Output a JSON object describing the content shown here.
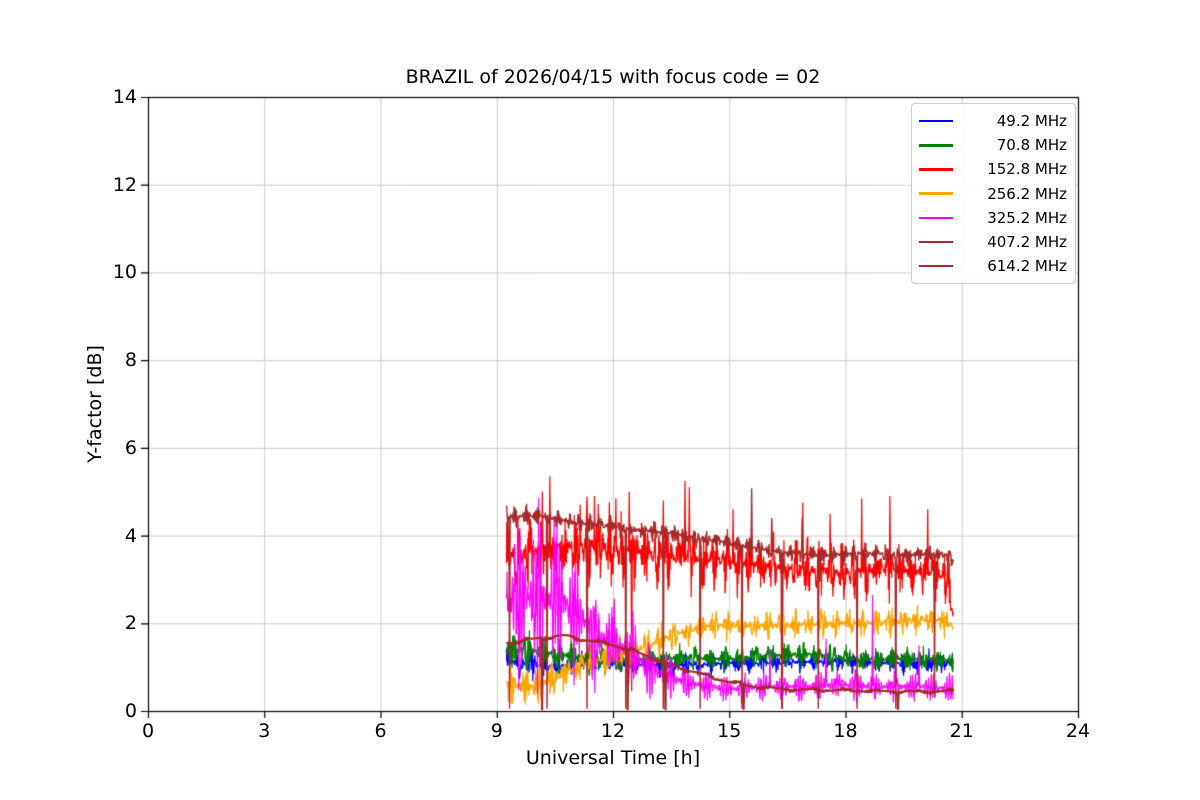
{
  "chart_data": {
    "type": "line",
    "title": "BRAZIL of 2026/04/15 with focus code = 02",
    "xlabel": "Universal Time [h]",
    "ylabel": "Y-factor [dB]",
    "xlim": [
      0,
      24
    ],
    "ylim": [
      0,
      14
    ],
    "xticks": [
      0,
      3,
      6,
      9,
      12,
      15,
      18,
      21,
      24
    ],
    "yticks": [
      0,
      2,
      4,
      6,
      8,
      10,
      12,
      14
    ],
    "grid": true,
    "grid_color": "#c6c6c6",
    "legend_position": "upper right",
    "time_coverage_h": [
      9.25,
      20.78
    ],
    "sample_step_h": 0.008,
    "series_note": "envelope points are [time_h, center_dB, noise_half_amplitude_dB]; spikes/dips are [time_h, value_dB]",
    "series": [
      {
        "name": "49.2 MHz",
        "color": "#0000ff",
        "seed": 101,
        "linewidth": 1.2,
        "mod_freq": 19,
        "osc_frac": 0.25,
        "osc_freq": 52,
        "envelope": [
          [
            9.25,
            1.15,
            0.28
          ],
          [
            10.0,
            1.05,
            0.3
          ],
          [
            10.6,
            1.0,
            0.28
          ],
          [
            11.2,
            1.15,
            0.25
          ],
          [
            12.0,
            1.1,
            0.22
          ],
          [
            13.0,
            1.05,
            0.22
          ],
          [
            14.0,
            1.05,
            0.22
          ],
          [
            15.0,
            1.1,
            0.22
          ],
          [
            16.0,
            1.1,
            0.22
          ],
          [
            17.0,
            1.12,
            0.22
          ],
          [
            18.0,
            1.15,
            0.22
          ],
          [
            19.0,
            1.1,
            0.22
          ],
          [
            20.0,
            1.1,
            0.24
          ],
          [
            20.78,
            1.1,
            0.25
          ]
        ],
        "spikes": [],
        "dips": []
      },
      {
        "name": "70.8 MHz",
        "color": "#008000",
        "seed": 202,
        "linewidth": 1.2,
        "mod_freq": 16,
        "osc_frac": 0.25,
        "osc_freq": 47,
        "envelope": [
          [
            9.25,
            1.45,
            0.45
          ],
          [
            10.2,
            1.35,
            0.4
          ],
          [
            11.0,
            1.25,
            0.35
          ],
          [
            12.0,
            1.15,
            0.3
          ],
          [
            13.0,
            1.2,
            0.28
          ],
          [
            14.0,
            1.2,
            0.28
          ],
          [
            15.0,
            1.18,
            0.26
          ],
          [
            16.0,
            1.25,
            0.28
          ],
          [
            17.0,
            1.3,
            0.28
          ],
          [
            18.0,
            1.2,
            0.26
          ],
          [
            19.0,
            1.18,
            0.26
          ],
          [
            20.0,
            1.2,
            0.26
          ],
          [
            20.78,
            1.15,
            0.26
          ]
        ],
        "spikes": [],
        "dips": []
      },
      {
        "name": "152.8 MHz",
        "color": "#ff0000",
        "seed": 303,
        "linewidth": 1.2,
        "mod_freq": 21,
        "osc_frac": 0.3,
        "osc_freq": 43,
        "envelope": [
          [
            9.25,
            3.55,
            0.75
          ],
          [
            10.0,
            3.6,
            0.85
          ],
          [
            10.8,
            3.7,
            0.85
          ],
          [
            11.5,
            3.75,
            0.85
          ],
          [
            12.2,
            3.7,
            0.8
          ],
          [
            13.0,
            3.6,
            0.75
          ],
          [
            14.0,
            3.5,
            0.7
          ],
          [
            15.0,
            3.4,
            0.65
          ],
          [
            16.0,
            3.3,
            0.6
          ],
          [
            17.0,
            3.2,
            0.6
          ],
          [
            18.0,
            3.15,
            0.6
          ],
          [
            19.0,
            3.25,
            0.6
          ],
          [
            20.0,
            3.2,
            0.6
          ],
          [
            20.6,
            3.1,
            0.7
          ],
          [
            20.78,
            2.2,
            0.8
          ]
        ],
        "spikes": [
          [
            10.18,
            5.0
          ],
          [
            10.37,
            5.35
          ],
          [
            11.15,
            4.7
          ],
          [
            11.52,
            4.9
          ],
          [
            12.07,
            4.85
          ],
          [
            12.42,
            5.0
          ],
          [
            13.3,
            4.8
          ],
          [
            13.86,
            5.25
          ],
          [
            13.97,
            5.1
          ],
          [
            15.1,
            4.6
          ],
          [
            16.9,
            4.75
          ],
          [
            17.6,
            4.5
          ],
          [
            18.42,
            4.85
          ],
          [
            19.15,
            4.9
          ],
          [
            20.12,
            4.6
          ]
        ],
        "dips": [
          [
            12.48,
            0.45
          ],
          [
            16.37,
            0.05
          ]
        ]
      },
      {
        "name": "256.2 MHz",
        "color": "#ffa500",
        "seed": 404,
        "linewidth": 1.2,
        "mod_freq": 18,
        "osc_frac": 0.3,
        "osc_freq": 58,
        "envelope": [
          [
            9.25,
            0.6,
            0.45
          ],
          [
            10.0,
            0.55,
            0.45
          ],
          [
            10.6,
            0.8,
            0.4
          ],
          [
            11.2,
            1.05,
            0.38
          ],
          [
            12.0,
            1.25,
            0.35
          ],
          [
            12.8,
            1.45,
            0.35
          ],
          [
            13.6,
            1.75,
            0.32
          ],
          [
            14.5,
            1.95,
            0.3
          ],
          [
            15.5,
            1.95,
            0.3
          ],
          [
            16.5,
            1.95,
            0.3
          ],
          [
            17.5,
            2.0,
            0.3
          ],
          [
            18.5,
            2.0,
            0.3
          ],
          [
            19.5,
            2.05,
            0.3
          ],
          [
            20.3,
            2.1,
            0.32
          ],
          [
            20.78,
            1.95,
            0.3
          ]
        ],
        "spikes": [],
        "dips": []
      },
      {
        "name": "325.2 MHz",
        "color": "#ff00ff",
        "seed": 505,
        "linewidth": 1.2,
        "mod_freq": 13,
        "osc_frac": 0.55,
        "osc_freq": 93,
        "envelope": [
          [
            9.25,
            2.5,
            1.8
          ],
          [
            10.0,
            2.6,
            1.75
          ],
          [
            10.7,
            2.5,
            1.6
          ],
          [
            11.2,
            2.1,
            1.2
          ],
          [
            11.7,
            1.7,
            0.95
          ],
          [
            12.3,
            1.45,
            0.9
          ],
          [
            12.9,
            1.0,
            0.6
          ],
          [
            13.5,
            0.75,
            0.45
          ],
          [
            14.2,
            0.6,
            0.3
          ],
          [
            15.0,
            0.5,
            0.28
          ],
          [
            16.0,
            0.55,
            0.3
          ],
          [
            17.0,
            0.55,
            0.3
          ],
          [
            18.0,
            0.6,
            0.32
          ],
          [
            19.0,
            0.55,
            0.3
          ],
          [
            20.0,
            0.55,
            0.3
          ],
          [
            20.78,
            0.5,
            0.3
          ]
        ],
        "spikes": [
          [
            16.05,
            1.4
          ],
          [
            17.5,
            1.65
          ],
          [
            18.7,
            2.65
          ],
          [
            19.3,
            1.5
          ],
          [
            19.9,
            1.5
          ]
        ],
        "dips": []
      },
      {
        "name": "407.2 MHz",
        "color": "#a52a2a",
        "seed": 606,
        "linewidth": 2.2,
        "mod_freq": 9,
        "osc_frac": 0.5,
        "osc_freq": 7,
        "envelope": [
          [
            9.25,
            1.55,
            0.07
          ],
          [
            10.2,
            1.68,
            0.07
          ],
          [
            10.7,
            1.73,
            0.07
          ],
          [
            11.2,
            1.63,
            0.07
          ],
          [
            11.9,
            1.52,
            0.07
          ],
          [
            12.5,
            1.38,
            0.07
          ],
          [
            13.2,
            1.15,
            0.07
          ],
          [
            14.0,
            0.92,
            0.06
          ],
          [
            14.8,
            0.7,
            0.06
          ],
          [
            15.5,
            0.57,
            0.06
          ],
          [
            16.5,
            0.5,
            0.06
          ],
          [
            18.0,
            0.46,
            0.06
          ],
          [
            19.5,
            0.45,
            0.06
          ],
          [
            20.78,
            0.45,
            0.07
          ]
        ],
        "spikes": [],
        "dips": [
          [
            10.17,
            0.02
          ],
          [
            12.38,
            0.02
          ],
          [
            13.35,
            0.02
          ],
          [
            15.37,
            0.03
          ],
          [
            19.35,
            0.03
          ]
        ]
      },
      {
        "name": "614.2 MHz",
        "color": "#a52a2a",
        "seed": 707,
        "linewidth": 1.4,
        "mod_freq": 23,
        "osc_frac": 0.25,
        "osc_freq": 61,
        "envelope": [
          [
            9.25,
            4.45,
            0.22
          ],
          [
            10.0,
            4.45,
            0.22
          ],
          [
            10.7,
            4.35,
            0.2
          ],
          [
            11.5,
            4.25,
            0.2
          ],
          [
            12.5,
            4.15,
            0.2
          ],
          [
            13.5,
            4.05,
            0.2
          ],
          [
            14.5,
            3.9,
            0.2
          ],
          [
            15.5,
            3.75,
            0.2
          ],
          [
            16.5,
            3.6,
            0.2
          ],
          [
            17.5,
            3.55,
            0.2
          ],
          [
            18.5,
            3.6,
            0.2
          ],
          [
            19.5,
            3.55,
            0.2
          ],
          [
            20.4,
            3.6,
            0.2
          ],
          [
            20.78,
            3.45,
            0.2
          ]
        ],
        "spikes": [
          [
            15.58,
            5.08
          ],
          [
            16.1,
            4.4
          ],
          [
            16.88,
            4.4
          ]
        ],
        "dips": [
          [
            9.33,
            0.05
          ],
          [
            10.3,
            0.05
          ],
          [
            11.33,
            0.05
          ],
          [
            12.33,
            0.05
          ],
          [
            13.3,
            0.05
          ],
          [
            14.25,
            0.05
          ],
          [
            15.33,
            0.05
          ],
          [
            16.35,
            0.05
          ],
          [
            17.3,
            0.05
          ],
          [
            18.3,
            0.05
          ],
          [
            19.3,
            0.05
          ],
          [
            20.3,
            0.3
          ]
        ]
      }
    ]
  }
}
